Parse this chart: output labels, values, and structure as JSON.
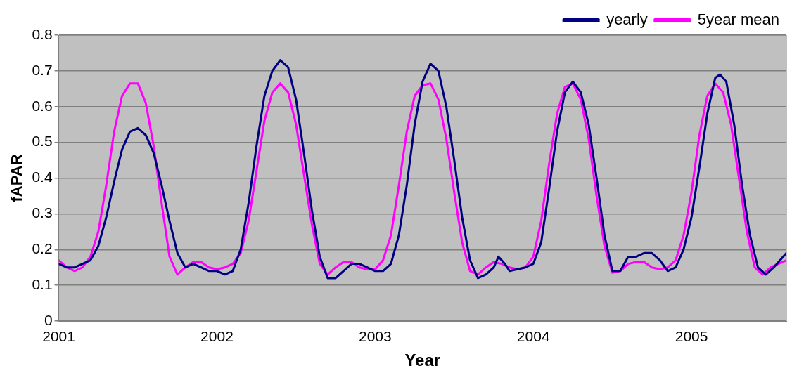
{
  "chart_data": {
    "type": "line",
    "xlabel": "Year",
    "ylabel": "fAPAR",
    "xlim": [
      2001,
      2005.6
    ],
    "xticks": [
      2001,
      2002,
      2003,
      2004,
      2005
    ],
    "ylim": [
      0,
      0.8
    ],
    "yticks": [
      0,
      0.1,
      0.2,
      0.3,
      0.4,
      0.5,
      0.6,
      0.7,
      0.8
    ],
    "grid": "y",
    "legend": "top right",
    "marker": "none",
    "line_style": "solid",
    "series": [
      {
        "name": "yearly",
        "color": "#000080",
        "x": [
          2001,
          2001.05,
          2001.1,
          2001.15,
          2001.2,
          2001.25,
          2001.3,
          2001.35,
          2001.4,
          2001.45,
          2001.5,
          2001.55,
          2001.6,
          2001.65,
          2001.7,
          2001.75,
          2001.8,
          2001.85,
          2001.9,
          2001.95,
          2002,
          2002.05,
          2002.1,
          2002.15,
          2002.2,
          2002.25,
          2002.3,
          2002.35,
          2002.4,
          2002.45,
          2002.5,
          2002.55,
          2002.6,
          2002.65,
          2002.7,
          2002.75,
          2002.8,
          2002.85,
          2002.9,
          2002.95,
          2003,
          2003.05,
          2003.1,
          2003.15,
          2003.2,
          2003.25,
          2003.3,
          2003.35,
          2003.4,
          2003.45,
          2003.5,
          2003.55,
          2003.6,
          2003.65,
          2003.7,
          2003.75,
          2003.78,
          2003.82,
          2003.85,
          2003.95,
          2004,
          2004.05,
          2004.1,
          2004.15,
          2004.2,
          2004.25,
          2004.3,
          2004.35,
          2004.4,
          2004.45,
          2004.5,
          2004.55,
          2004.6,
          2004.65,
          2004.7,
          2004.75,
          2004.8,
          2004.85,
          2004.9,
          2004.95,
          2005,
          2005.05,
          2005.1,
          2005.15,
          2005.18,
          2005.22,
          2005.27,
          2005.32,
          2005.37,
          2005.42,
          2005.47,
          2005.52,
          2005.56,
          2005.6
        ],
        "values": [
          0.16,
          0.15,
          0.15,
          0.16,
          0.17,
          0.21,
          0.29,
          0.39,
          0.48,
          0.53,
          0.54,
          0.52,
          0.47,
          0.38,
          0.28,
          0.19,
          0.15,
          0.16,
          0.15,
          0.14,
          0.14,
          0.13,
          0.14,
          0.2,
          0.33,
          0.49,
          0.63,
          0.7,
          0.73,
          0.71,
          0.62,
          0.47,
          0.31,
          0.18,
          0.12,
          0.12,
          0.14,
          0.16,
          0.16,
          0.15,
          0.14,
          0.14,
          0.16,
          0.24,
          0.38,
          0.55,
          0.67,
          0.72,
          0.7,
          0.6,
          0.45,
          0.29,
          0.17,
          0.12,
          0.13,
          0.15,
          0.18,
          0.16,
          0.14,
          0.15,
          0.16,
          0.22,
          0.37,
          0.53,
          0.64,
          0.67,
          0.64,
          0.55,
          0.4,
          0.24,
          0.14,
          0.14,
          0.18,
          0.18,
          0.19,
          0.19,
          0.17,
          0.14,
          0.15,
          0.2,
          0.29,
          0.43,
          0.58,
          0.68,
          0.69,
          0.67,
          0.55,
          0.38,
          0.24,
          0.15,
          0.13,
          0.15,
          0.17,
          0.19
        ]
      },
      {
        "name": "5year mean",
        "color": "#ff00ff",
        "x": [
          2001,
          2001.05,
          2001.1,
          2001.15,
          2001.2,
          2001.25,
          2001.3,
          2001.35,
          2001.4,
          2001.45,
          2001.5,
          2001.55,
          2001.6,
          2001.65,
          2001.7,
          2001.75,
          2001.8,
          2001.85,
          2001.9,
          2001.95,
          2002,
          2002.05,
          2002.1,
          2002.15,
          2002.2,
          2002.25,
          2002.3,
          2002.35,
          2002.4,
          2002.45,
          2002.5,
          2002.55,
          2002.6,
          2002.65,
          2002.7,
          2002.75,
          2002.8,
          2002.85,
          2002.9,
          2002.95,
          2003,
          2003.05,
          2003.1,
          2003.15,
          2003.2,
          2003.25,
          2003.3,
          2003.35,
          2003.4,
          2003.45,
          2003.5,
          2003.55,
          2003.6,
          2003.65,
          2003.7,
          2003.75,
          2003.8,
          2003.85,
          2003.9,
          2003.95,
          2004,
          2004.05,
          2004.1,
          2004.15,
          2004.2,
          2004.25,
          2004.3,
          2004.35,
          2004.4,
          2004.45,
          2004.5,
          2004.55,
          2004.6,
          2004.65,
          2004.7,
          2004.75,
          2004.8,
          2004.85,
          2004.9,
          2004.95,
          2005,
          2005.05,
          2005.1,
          2005.15,
          2005.2,
          2005.25,
          2005.3,
          2005.35,
          2005.4,
          2005.45,
          2005.5,
          2005.55,
          2005.6
        ],
        "values": [
          0.17,
          0.15,
          0.14,
          0.15,
          0.18,
          0.25,
          0.38,
          0.53,
          0.63,
          0.665,
          0.665,
          0.61,
          0.49,
          0.33,
          0.18,
          0.13,
          0.15,
          0.165,
          0.165,
          0.15,
          0.145,
          0.15,
          0.16,
          0.19,
          0.28,
          0.42,
          0.56,
          0.64,
          0.665,
          0.64,
          0.55,
          0.41,
          0.27,
          0.16,
          0.13,
          0.15,
          0.165,
          0.165,
          0.15,
          0.145,
          0.145,
          0.17,
          0.24,
          0.38,
          0.53,
          0.63,
          0.66,
          0.665,
          0.62,
          0.51,
          0.36,
          0.22,
          0.14,
          0.13,
          0.15,
          0.165,
          0.16,
          0.15,
          0.145,
          0.15,
          0.18,
          0.28,
          0.44,
          0.58,
          0.655,
          0.665,
          0.62,
          0.51,
          0.35,
          0.21,
          0.135,
          0.14,
          0.16,
          0.165,
          0.165,
          0.15,
          0.145,
          0.15,
          0.17,
          0.24,
          0.36,
          0.52,
          0.63,
          0.665,
          0.64,
          0.55,
          0.4,
          0.25,
          0.15,
          0.13,
          0.15,
          0.16,
          0.17
        ]
      }
    ]
  }
}
